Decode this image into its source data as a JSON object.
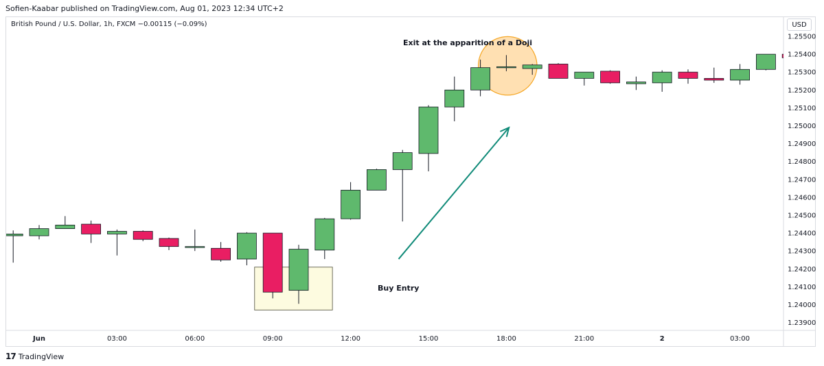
{
  "header": {
    "published_by": "Sofien-Kaabar published on TradingView.com, Aug 01, 2023 12:34 UTC+2"
  },
  "symbol_line": "British Pound / U.S. Dollar, 1h, FXCM  −0.00115 (−0.09%)",
  "currency_button": "USD",
  "brand": {
    "name": "TradingView",
    "logo": "17"
  },
  "colors": {
    "up": "#5fb96d",
    "down": "#e91e63",
    "arrow": "#0f8a78",
    "circle_fill": "#ffe0b2",
    "circle_stroke": "#f5a623",
    "box_fill": "#fdfbe0",
    "box_stroke": "#6d6d5a",
    "grid": "#f0f3fa"
  },
  "chart_data": {
    "type": "candlestick",
    "ylim": [
      1.2385,
      1.2553
    ],
    "y_ticks": [
      "1.25500",
      "1.25400",
      "1.25300",
      "1.25200",
      "1.25100",
      "1.25000",
      "1.24900",
      "1.24800",
      "1.24700",
      "1.24600",
      "1.24500",
      "1.24400",
      "1.24300",
      "1.24200",
      "1.24100",
      "1.24000",
      "1.23900"
    ],
    "x_ticks": [
      {
        "label": "Jun",
        "hour": 0,
        "bold": true
      },
      {
        "label": "03:00",
        "hour": 3
      },
      {
        "label": "06:00",
        "hour": 6
      },
      {
        "label": "09:00",
        "hour": 9
      },
      {
        "label": "12:00",
        "hour": 12
      },
      {
        "label": "15:00",
        "hour": 15
      },
      {
        "label": "18:00",
        "hour": 18
      },
      {
        "label": "21:00",
        "hour": 21
      },
      {
        "label": "2",
        "hour": 24,
        "bold": true
      },
      {
        "label": "03:00",
        "hour": 27
      }
    ],
    "candles": [
      {
        "hour": -1,
        "open": 1.24385,
        "high": 1.24415,
        "low": 1.24235,
        "close": 1.24395
      },
      {
        "hour": 0,
        "open": 1.24385,
        "high": 1.24445,
        "low": 1.24365,
        "close": 1.24425
      },
      {
        "hour": 1,
        "open": 1.24425,
        "high": 1.24495,
        "low": 1.24425,
        "close": 1.24445
      },
      {
        "hour": 2,
        "open": 1.2445,
        "high": 1.2447,
        "low": 1.24345,
        "close": 1.24395
      },
      {
        "hour": 3,
        "open": 1.24395,
        "high": 1.2442,
        "low": 1.24275,
        "close": 1.2441
      },
      {
        "hour": 4,
        "open": 1.2441,
        "high": 1.24415,
        "low": 1.24355,
        "close": 1.24365
      },
      {
        "hour": 5,
        "open": 1.2437,
        "high": 1.24375,
        "low": 1.24305,
        "close": 1.24325
      },
      {
        "hour": 6,
        "open": 1.24325,
        "high": 1.2442,
        "low": 1.243,
        "close": 1.24325
      },
      {
        "hour": 7,
        "open": 1.24315,
        "high": 1.2435,
        "low": 1.2424,
        "close": 1.2425
      },
      {
        "hour": 8,
        "open": 1.24255,
        "high": 1.24405,
        "low": 1.2422,
        "close": 1.244
      },
      {
        "hour": 9,
        "open": 1.244,
        "high": 1.244,
        "low": 1.24035,
        "close": 1.2407
      },
      {
        "hour": 10,
        "open": 1.2408,
        "high": 1.24335,
        "low": 1.24005,
        "close": 1.2431
      },
      {
        "hour": 11,
        "open": 1.24305,
        "high": 1.24485,
        "low": 1.24255,
        "close": 1.2448
      },
      {
        "hour": 12,
        "open": 1.2448,
        "high": 1.24685,
        "low": 1.24475,
        "close": 1.2464
      },
      {
        "hour": 13,
        "open": 1.2464,
        "high": 1.2476,
        "low": 1.2464,
        "close": 1.24755
      },
      {
        "hour": 14,
        "open": 1.24755,
        "high": 1.24865,
        "low": 1.24465,
        "close": 1.2485
      },
      {
        "hour": 15,
        "open": 1.24845,
        "high": 1.25115,
        "low": 1.24745,
        "close": 1.25105
      },
      {
        "hour": 16,
        "open": 1.25105,
        "high": 1.25275,
        "low": 1.25025,
        "close": 1.252
      },
      {
        "hour": 17,
        "open": 1.252,
        "high": 1.2537,
        "low": 1.25165,
        "close": 1.25325
      },
      {
        "hour": 18,
        "open": 1.25325,
        "high": 1.25395,
        "low": 1.25305,
        "close": 1.2533
      },
      {
        "hour": 19,
        "open": 1.2532,
        "high": 1.25345,
        "low": 1.25285,
        "close": 1.2534
      },
      {
        "hour": 20,
        "open": 1.25345,
        "high": 1.2535,
        "low": 1.25265,
        "close": 1.25265
      },
      {
        "hour": 21,
        "open": 1.25265,
        "high": 1.253,
        "low": 1.25225,
        "close": 1.253
      },
      {
        "hour": 22,
        "open": 1.25305,
        "high": 1.2531,
        "low": 1.25235,
        "close": 1.2524
      },
      {
        "hour": 23,
        "open": 1.25235,
        "high": 1.25275,
        "low": 1.252,
        "close": 1.25245
      },
      {
        "hour": 24,
        "open": 1.2524,
        "high": 1.2531,
        "low": 1.2519,
        "close": 1.253
      },
      {
        "hour": 25,
        "open": 1.253,
        "high": 1.25315,
        "low": 1.25235,
        "close": 1.25265
      },
      {
        "hour": 26,
        "open": 1.25265,
        "high": 1.25325,
        "low": 1.2524,
        "close": 1.25255
      },
      {
        "hour": 27,
        "open": 1.25255,
        "high": 1.25345,
        "low": 1.2523,
        "close": 1.25315
      },
      {
        "hour": 28,
        "open": 1.25315,
        "high": 1.254,
        "low": 1.2531,
        "close": 1.254
      },
      {
        "hour": 29,
        "open": 1.254,
        "high": 1.2541,
        "low": 1.2537,
        "close": 1.2538
      }
    ],
    "annotations": {
      "exit_text": "Exit at the apparition of a Doji",
      "buy_text": "Buy Entry",
      "entry_box": {
        "hour_start": 8.3,
        "hour_end": 11.3,
        "price_top": 1.2421,
        "price_bottom": 1.2397
      },
      "doji_circle": {
        "hour": 18.05,
        "price": 1.25335,
        "radius_hours": 1.13
      },
      "arrow": {
        "from": {
          "hour": 13.85,
          "price": 1.24255
        },
        "to": {
          "hour": 18.1,
          "price": 1.2499
        }
      }
    }
  }
}
